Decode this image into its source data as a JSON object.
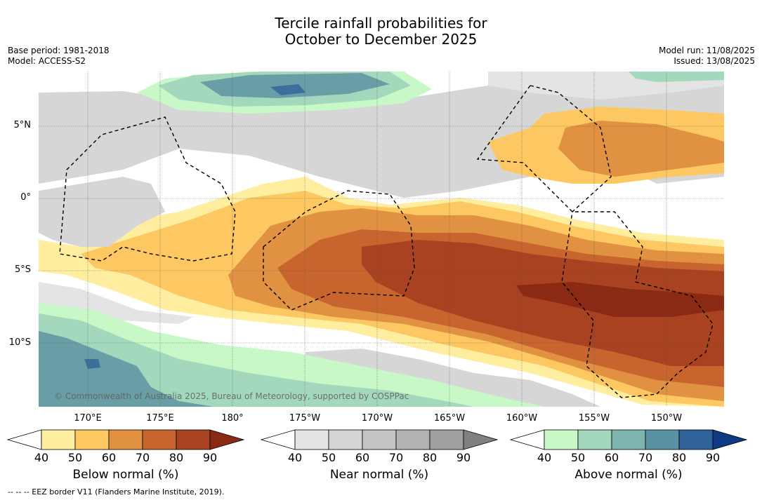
{
  "title": {
    "line1": "Tercile rainfall probabilities for",
    "line2": "October to December 2025"
  },
  "meta_left": {
    "base_period": "Base period: 1981-2018",
    "model": "Model: ACCESS-S2"
  },
  "meta_right": {
    "model_run": "Model run: 11/08/2025",
    "issued": "Issued: 13/08/2025"
  },
  "lat_labels": [
    "5°N",
    "0°",
    "5°S",
    "10°S"
  ],
  "lon_labels": [
    "170°E",
    "175°E",
    "180°",
    "175°W",
    "170°W",
    "165°W",
    "160°W",
    "155°W",
    "150°W"
  ],
  "copyright": "© Commonwealth of Australia 2025, Bureau of Meteorology, supported by COSPPac",
  "legends": [
    {
      "title": "Below normal (%)",
      "ticks": [
        "40",
        "50",
        "60",
        "70",
        "80",
        "90"
      ],
      "colors": [
        "#ffeea0",
        "#fdc862",
        "#e09242",
        "#c8642e",
        "#a84220",
        "#8a2a14"
      ]
    },
    {
      "title": "Near normal (%)",
      "ticks": [
        "40",
        "50",
        "60",
        "70",
        "80",
        "90"
      ],
      "colors": [
        "#e4e4e4",
        "#d4d4d4",
        "#c4c4c4",
        "#b2b2b2",
        "#a0a0a0",
        "#808080"
      ]
    },
    {
      "title": "Above normal (%)",
      "ticks": [
        "40",
        "50",
        "60",
        "70",
        "80",
        "90"
      ],
      "colors": [
        "#c8f8c8",
        "#a4d8bc",
        "#80b4ae",
        "#5a92a4",
        "#30629a",
        "#0e3a84"
      ]
    }
  ],
  "eez_note": "--  --  -- EEZ border V11 (Flanders Marine Institute, 2019)."
}
